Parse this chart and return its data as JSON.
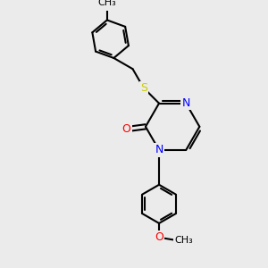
{
  "bg_color": "#ebebeb",
  "bond_color": "#000000",
  "bond_width": 1.5,
  "atom_colors": {
    "N": "#0000ff",
    "O": "#ff0000",
    "S": "#cccc00"
  },
  "font_size": 9,
  "figsize": [
    3.0,
    3.0
  ],
  "dpi": 100,
  "xlim": [
    0,
    10
  ],
  "ylim": [
    0,
    10
  ]
}
